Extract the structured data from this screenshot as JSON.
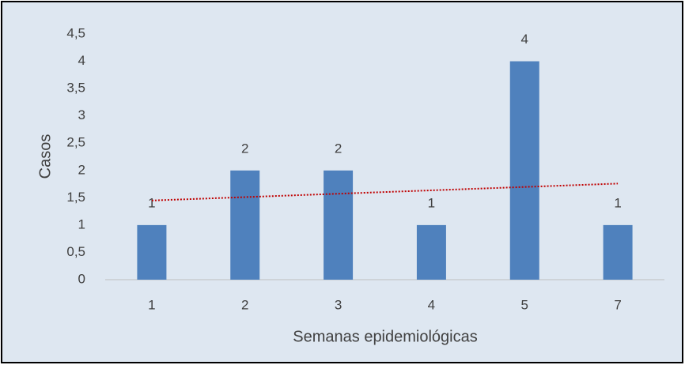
{
  "chart_data": {
    "type": "bar",
    "x_label": "Semanas epidemiológicas",
    "y_label": "Casos",
    "categories": [
      "1",
      "2",
      "3",
      "4",
      "5",
      "7"
    ],
    "values": [
      1,
      2,
      2,
      1,
      4,
      1
    ],
    "color": "#4f81bd",
    "ylim": [
      0,
      4.5
    ],
    "yticks": [
      0,
      {
        "value": 0.5,
        "label": "0,5"
      },
      1,
      {
        "value": 1.5,
        "label": "1,5"
      },
      2,
      {
        "value": 2.5,
        "label": "2,5"
      },
      3,
      {
        "value": 3.5,
        "label": "3,5"
      },
      4,
      {
        "value": 4.5,
        "label": "4,5"
      }
    ],
    "grid": false,
    "trendline": {
      "color": "#c00000",
      "values": [
        1.45,
        1.76
      ]
    }
  }
}
